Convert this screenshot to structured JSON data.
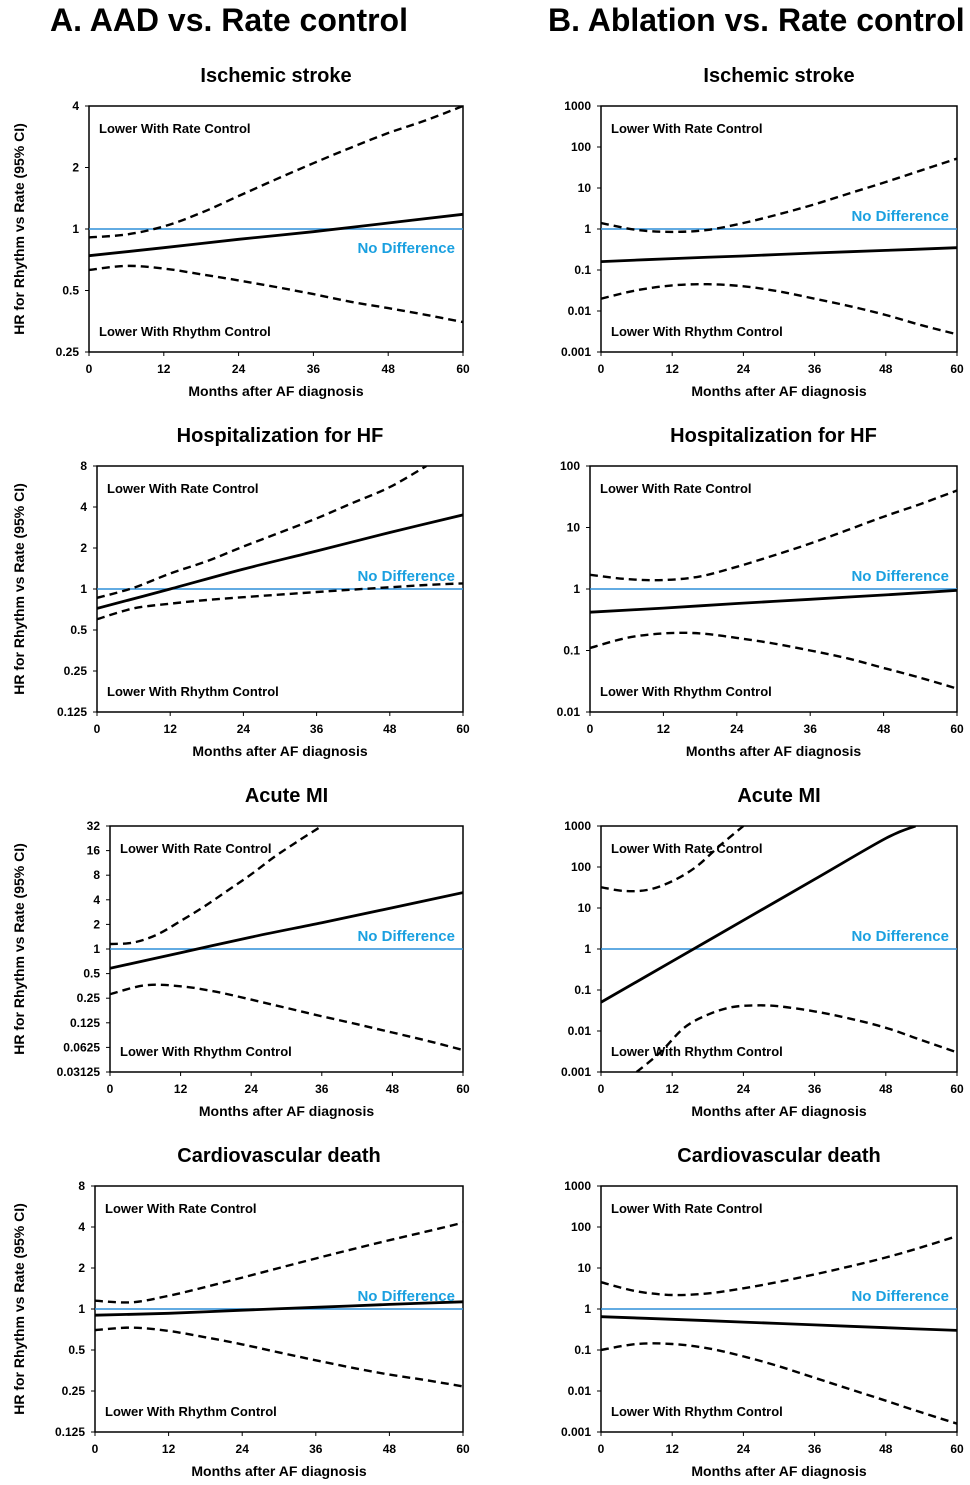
{
  "columns": [
    {
      "title": "A. AAD vs. Rate control"
    },
    {
      "title": "B. Ablation vs. Rate control"
    }
  ],
  "colors": {
    "ref_line": "#2f8fd8",
    "no_difference_text": "#1aa0e0",
    "curve": "#000000"
  },
  "chart_data": [
    {
      "type": "line",
      "column": "A",
      "title": "Ischemic stroke",
      "scale": "log2",
      "ylabel": "HR for Rhythm vs Rate (95% CI)",
      "xlabel": "Months after AF diagnosis",
      "xlim": [
        0,
        60
      ],
      "xticks": [
        "0",
        "12",
        "24",
        "36",
        "48",
        "60"
      ],
      "ylim": [
        0.25,
        4
      ],
      "yticks": [
        0.25,
        0.5,
        1,
        2,
        4
      ],
      "ytick_labels": [
        "0.25",
        "0.5",
        "1",
        "2",
        "4"
      ],
      "reference_line": 1,
      "no_difference_label": "No Difference",
      "upper_region_label": "Lower With Rate Control",
      "lower_region_label": "Lower With Rhythm Control",
      "series": [
        {
          "style": "solid",
          "x": [
            0,
            12,
            24,
            36,
            48,
            60
          ],
          "y": [
            0.74,
            0.81,
            0.89,
            0.97,
            1.07,
            1.18
          ]
        },
        {
          "style": "dashed",
          "x": [
            0,
            6,
            12,
            18,
            24,
            30,
            36,
            42,
            48,
            54,
            60
          ],
          "y": [
            0.91,
            0.94,
            1.03,
            1.2,
            1.45,
            1.75,
            2.1,
            2.5,
            2.95,
            3.4,
            4.0
          ]
        },
        {
          "style": "dashed",
          "x": [
            0,
            6,
            12,
            18,
            24,
            30,
            36,
            42,
            48,
            54,
            60
          ],
          "y": [
            0.63,
            0.66,
            0.64,
            0.6,
            0.56,
            0.52,
            0.48,
            0.44,
            0.41,
            0.38,
            0.35
          ]
        }
      ]
    },
    {
      "type": "line",
      "column": "B",
      "title": "Ischemic stroke",
      "scale": "log10",
      "ylabel": "",
      "xlabel": "Months after AF diagnosis",
      "xlim": [
        0,
        60
      ],
      "xticks": [
        "0",
        "12",
        "24",
        "36",
        "48",
        "60"
      ],
      "ylim": [
        0.001,
        1000
      ],
      "yticks": [
        0.001,
        0.01,
        0.1,
        1,
        10,
        100,
        1000
      ],
      "ytick_labels": [
        "0.001",
        "0.01",
        "0.1",
        "1",
        "10",
        "100",
        "1000"
      ],
      "reference_line": 1,
      "no_difference_label": "No Difference",
      "upper_region_label": "Lower With Rate Control",
      "lower_region_label": "Lower With Rhythm Control",
      "series": [
        {
          "style": "solid",
          "x": [
            0,
            12,
            24,
            36,
            48,
            60
          ],
          "y": [
            0.16,
            0.19,
            0.22,
            0.26,
            0.3,
            0.35
          ]
        },
        {
          "style": "dashed",
          "x": [
            0,
            6,
            12,
            18,
            24,
            30,
            36,
            42,
            48,
            54,
            60
          ],
          "y": [
            1.4,
            0.95,
            0.85,
            0.95,
            1.4,
            2.3,
            4,
            7.5,
            14,
            27,
            52
          ]
        },
        {
          "style": "dashed",
          "x": [
            0,
            6,
            12,
            18,
            24,
            30,
            36,
            42,
            48,
            54,
            60
          ],
          "y": [
            0.02,
            0.032,
            0.042,
            0.045,
            0.04,
            0.03,
            0.02,
            0.013,
            0.008,
            0.0045,
            0.0027
          ]
        }
      ]
    },
    {
      "type": "line",
      "column": "A",
      "title": "Hospitalization for HF",
      "scale": "log2",
      "ylabel": "HR for Rhythm vs Rate (95% CI)",
      "xlabel": "Months after AF diagnosis",
      "xlim": [
        0,
        60
      ],
      "xticks": [
        "0",
        "12",
        "24",
        "36",
        "48",
        "60"
      ],
      "ylim": [
        0.125,
        8
      ],
      "yticks": [
        0.125,
        0.25,
        0.5,
        1,
        2,
        4,
        8
      ],
      "ytick_labels": [
        "0.125",
        "0.25",
        "0.5",
        "1",
        "2",
        "4",
        "8"
      ],
      "reference_line": 1,
      "no_difference_label": "No Difference",
      "upper_region_label": "Lower With Rate Control",
      "lower_region_label": "Lower With Rhythm Control",
      "series": [
        {
          "style": "solid",
          "x": [
            0,
            12,
            24,
            36,
            48,
            60
          ],
          "y": [
            0.72,
            1.0,
            1.4,
            1.9,
            2.6,
            3.5
          ]
        },
        {
          "style": "dashed",
          "x": [
            0,
            6,
            12,
            18,
            24,
            30,
            36,
            42,
            48,
            54
          ],
          "y": [
            0.86,
            1.02,
            1.3,
            1.6,
            2.05,
            2.6,
            3.3,
            4.3,
            5.6,
            8.0
          ]
        },
        {
          "style": "dashed",
          "x": [
            0,
            6,
            12,
            18,
            24,
            30,
            36,
            42,
            48,
            54,
            60
          ],
          "y": [
            0.6,
            0.72,
            0.78,
            0.83,
            0.87,
            0.91,
            0.95,
            0.99,
            1.03,
            1.07,
            1.1
          ]
        }
      ]
    },
    {
      "type": "line",
      "column": "B",
      "title": "Hospitalization for HF",
      "scale": "log10",
      "ylabel": "",
      "xlabel": "Months after AF diagnosis",
      "xlim": [
        0,
        60
      ],
      "xticks": [
        "0",
        "12",
        "24",
        "36",
        "48",
        "60"
      ],
      "ylim": [
        0.01,
        100
      ],
      "yticks": [
        0.01,
        0.1,
        1,
        10,
        100
      ],
      "ytick_labels": [
        "0.01",
        "0.1",
        "1",
        "10",
        "100"
      ],
      "reference_line": 1,
      "no_difference_label": "No Difference",
      "upper_region_label": "Lower With Rate Control",
      "lower_region_label": "Lower With Rhythm Control",
      "series": [
        {
          "style": "solid",
          "x": [
            0,
            12,
            24,
            36,
            48,
            60
          ],
          "y": [
            0.42,
            0.49,
            0.58,
            0.68,
            0.8,
            0.95
          ]
        },
        {
          "style": "dashed",
          "x": [
            0,
            6,
            12,
            18,
            24,
            30,
            36,
            42,
            48,
            54,
            60
          ],
          "y": [
            1.7,
            1.45,
            1.4,
            1.6,
            2.3,
            3.5,
            5.5,
            9,
            15,
            24,
            40
          ]
        },
        {
          "style": "dashed",
          "x": [
            0,
            6,
            12,
            18,
            24,
            30,
            36,
            42,
            48,
            54,
            60
          ],
          "y": [
            0.11,
            0.16,
            0.19,
            0.19,
            0.16,
            0.13,
            0.1,
            0.075,
            0.052,
            0.036,
            0.024
          ]
        }
      ]
    },
    {
      "type": "line",
      "column": "A",
      "title": "Acute MI",
      "scale": "log2",
      "ylabel": "HR for Rhythm vs Rate (95% CI)",
      "xlabel": "Months after AF diagnosis",
      "xlim": [
        0,
        60
      ],
      "xticks": [
        "0",
        "12",
        "24",
        "36",
        "48",
        "60"
      ],
      "ylim": [
        0.03125,
        32
      ],
      "yticks": [
        0.03125,
        0.0625,
        0.125,
        0.25,
        0.5,
        1,
        2,
        4,
        8,
        16,
        32
      ],
      "ytick_labels": [
        "0.03125",
        "0.0625",
        "0.125",
        "0.25",
        "0.5",
        "1",
        "2",
        "4",
        "8",
        "16",
        "32"
      ],
      "reference_line": 1,
      "no_difference_label": "No Difference",
      "upper_region_label": "Lower With Rate Control",
      "lower_region_label": "Lower With Rhythm Control",
      "series": [
        {
          "style": "solid",
          "x": [
            0,
            12,
            24,
            36,
            48,
            60
          ],
          "y": [
            0.58,
            0.9,
            1.4,
            2.1,
            3.2,
            4.9
          ]
        },
        {
          "style": "dashed",
          "x": [
            0,
            4,
            8,
            12,
            16,
            20,
            24,
            28,
            32,
            36
          ],
          "y": [
            1.15,
            1.2,
            1.5,
            2.2,
            3.3,
            5.2,
            8.2,
            13.5,
            21,
            32
          ]
        },
        {
          "style": "dashed",
          "x": [
            0,
            6,
            12,
            18,
            24,
            30,
            36,
            42,
            48,
            54,
            60
          ],
          "y": [
            0.28,
            0.36,
            0.35,
            0.3,
            0.24,
            0.19,
            0.15,
            0.12,
            0.095,
            0.075,
            0.058
          ]
        }
      ]
    },
    {
      "type": "line",
      "column": "B",
      "title": "Acute MI",
      "scale": "log10",
      "ylabel": "",
      "xlabel": "Months after AF diagnosis",
      "xlim": [
        0,
        60
      ],
      "xticks": [
        "0",
        "12",
        "24",
        "36",
        "48",
        "60"
      ],
      "ylim": [
        0.001,
        1000
      ],
      "yticks": [
        0.001,
        0.01,
        0.1,
        1,
        10,
        100,
        1000
      ],
      "ytick_labels": [
        "0.001",
        "0.01",
        "0.1",
        "1",
        "10",
        "100",
        "1000"
      ],
      "reference_line": 1,
      "no_difference_label": "No Difference",
      "upper_region_label": "Lower With Rate Control",
      "lower_region_label": "Lower With Rhythm Control",
      "series": [
        {
          "style": "solid",
          "x": [
            0,
            12,
            24,
            36,
            48,
            53
          ],
          "y": [
            0.05,
            0.5,
            5,
            50,
            500,
            1000
          ]
        },
        {
          "style": "dashed",
          "x": [
            0,
            4,
            8,
            12,
            16,
            20,
            24
          ],
          "y": [
            32,
            26,
            28,
            45,
            100,
            330,
            1000
          ]
        },
        {
          "style": "dashed",
          "x": [
            6,
            10,
            14,
            18,
            22,
            26,
            30,
            36,
            42,
            48,
            54,
            60
          ],
          "y": [
            0.001,
            0.003,
            0.012,
            0.025,
            0.038,
            0.042,
            0.04,
            0.03,
            0.02,
            0.012,
            0.006,
            0.003
          ]
        }
      ]
    },
    {
      "type": "line",
      "column": "A",
      "title": "Cardiovascular death",
      "scale": "log2",
      "ylabel": "HR for Rhythm vs Rate (95% CI)",
      "xlabel": "Months after AF diagnosis",
      "xlim": [
        0,
        60
      ],
      "xticks": [
        "0",
        "12",
        "24",
        "36",
        "48",
        "60"
      ],
      "ylim": [
        0.125,
        8
      ],
      "yticks": [
        0.125,
        0.25,
        0.5,
        1,
        2,
        4,
        8
      ],
      "ytick_labels": [
        "0.125",
        "0.25",
        "0.5",
        "1",
        "2",
        "4",
        "8"
      ],
      "reference_line": 1,
      "no_difference_label": "No Difference",
      "upper_region_label": "Lower With Rate Control",
      "lower_region_label": "Lower With Rhythm Control",
      "series": [
        {
          "style": "solid",
          "x": [
            0,
            12,
            24,
            36,
            48,
            60
          ],
          "y": [
            0.9,
            0.93,
            0.98,
            1.03,
            1.08,
            1.13
          ]
        },
        {
          "style": "dashed",
          "x": [
            0,
            6,
            12,
            18,
            24,
            30,
            36,
            42,
            48,
            54,
            60
          ],
          "y": [
            1.15,
            1.12,
            1.25,
            1.45,
            1.7,
            2.0,
            2.35,
            2.75,
            3.2,
            3.7,
            4.3
          ]
        },
        {
          "style": "dashed",
          "x": [
            0,
            6,
            12,
            18,
            24,
            30,
            36,
            42,
            48,
            54,
            60
          ],
          "y": [
            0.7,
            0.73,
            0.69,
            0.62,
            0.55,
            0.48,
            0.42,
            0.37,
            0.33,
            0.3,
            0.27
          ]
        }
      ]
    },
    {
      "type": "line",
      "column": "B",
      "title": "Cardiovascular death",
      "scale": "log10",
      "ylabel": "",
      "xlabel": "Months after AF diagnosis",
      "xlim": [
        0,
        60
      ],
      "xticks": [
        "0",
        "12",
        "24",
        "36",
        "48",
        "60"
      ],
      "ylim": [
        0.001,
        1000
      ],
      "yticks": [
        0.001,
        0.01,
        0.1,
        1,
        10,
        100,
        1000
      ],
      "ytick_labels": [
        "0.001",
        "0.01",
        "0.1",
        "1",
        "10",
        "100",
        "1000"
      ],
      "reference_line": 1,
      "no_difference_label": "No Difference",
      "upper_region_label": "Lower With Rate Control",
      "lower_region_label": "Lower With Rhythm Control",
      "series": [
        {
          "style": "solid",
          "x": [
            0,
            12,
            24,
            36,
            48,
            60
          ],
          "y": [
            0.65,
            0.56,
            0.48,
            0.41,
            0.35,
            0.3
          ]
        },
        {
          "style": "dashed",
          "x": [
            0,
            6,
            12,
            18,
            24,
            30,
            36,
            42,
            48,
            54,
            60
          ],
          "y": [
            4.5,
            2.7,
            2.2,
            2.4,
            3.2,
            4.6,
            7,
            11,
            18,
            32,
            60
          ]
        },
        {
          "style": "dashed",
          "x": [
            0,
            6,
            12,
            18,
            24,
            30,
            36,
            42,
            48,
            54,
            60
          ],
          "y": [
            0.1,
            0.14,
            0.14,
            0.11,
            0.07,
            0.04,
            0.021,
            0.011,
            0.0058,
            0.003,
            0.0016
          ]
        }
      ]
    }
  ]
}
